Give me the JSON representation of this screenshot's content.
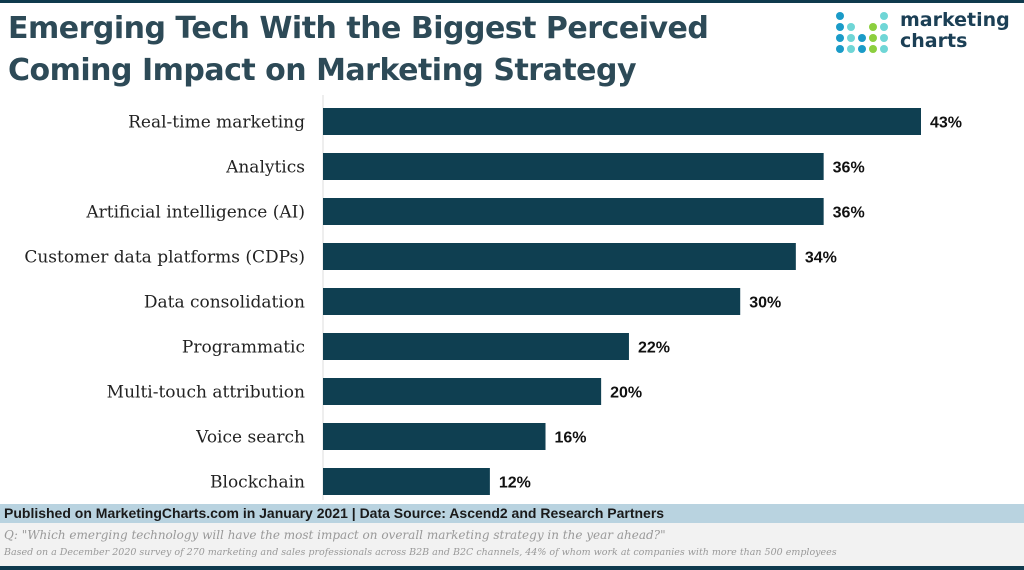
{
  "title": "Emerging Tech With the Biggest Perceived Coming Impact on Marketing Strategy",
  "logo": {
    "line1": "marketing",
    "line2": "charts"
  },
  "chart_data": {
    "type": "bar",
    "orientation": "horizontal",
    "categories": [
      "Real-time marketing",
      "Analytics",
      "Artificial intelligence (AI)",
      "Customer data platforms (CDPs)",
      "Data consolidation",
      "Programmatic",
      "Multi-touch attribution",
      "Voice search",
      "Blockchain"
    ],
    "values": [
      43,
      36,
      36,
      34,
      30,
      22,
      20,
      16,
      12
    ],
    "labels": [
      "43%",
      "36%",
      "36%",
      "34%",
      "30%",
      "22%",
      "20%",
      "16%",
      "12%"
    ],
    "bar_color": "#0f3f51",
    "xlim": [
      0,
      43
    ],
    "grid": false
  },
  "footer": {
    "published": "Published on MarketingCharts.com in January 2021 | Data Source: Ascend2 and Research Partners",
    "question": "Q: \"Which emerging technology will have the most impact on overall marketing strategy in the year ahead?\"",
    "note": "Based on a December 2020 survey of 270 marketing and sales professionals across B2B and B2C channels, 44% of whom work at companies with more than 500 employees"
  }
}
